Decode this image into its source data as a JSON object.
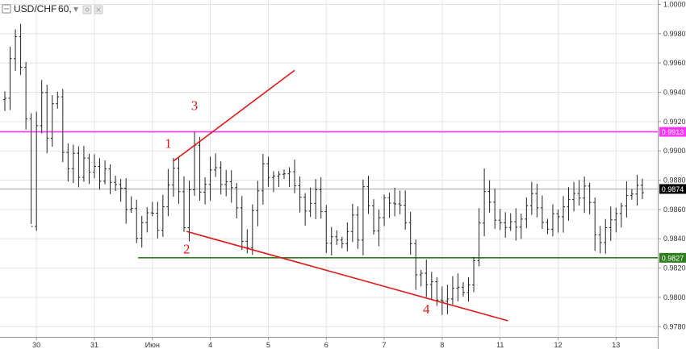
{
  "header": {
    "symbol": "USD/CHF",
    "timeframe": "60,",
    "dropdown_glyph": "▾"
  },
  "colors": {
    "magenta": "#ff33ff",
    "green": "#2e7d1e",
    "red": "#e01818",
    "candles": "#222222",
    "current": "#000000",
    "grid": "#e4e4e4"
  },
  "chart_data": {
    "type": "ohlc",
    "ylim": [
      0.9773,
      1.0003
    ],
    "xlim": [
      0,
      123
    ],
    "x_tick_labels": [
      {
        "x": 6,
        "label": "30"
      },
      {
        "x": 17,
        "label": "31"
      },
      {
        "x": 28,
        "label": "Июн"
      },
      {
        "x": 39,
        "label": "4"
      },
      {
        "x": 50,
        "label": "5"
      },
      {
        "x": 61,
        "label": "6"
      },
      {
        "x": 72,
        "label": "7"
      },
      {
        "x": 83,
        "label": "8"
      },
      {
        "x": 94,
        "label": "11"
      },
      {
        "x": 105,
        "label": "12"
      },
      {
        "x": 116,
        "label": "13"
      }
    ],
    "y_tick_labels": [
      "1.0000",
      "0.9980",
      "0.9960",
      "0.9940",
      "0.9920",
      "0.9900",
      "0.9880",
      "0.9860",
      "0.9840",
      "0.9820",
      "0.9800",
      "0.9780"
    ],
    "y_ticks": [
      1.0,
      0.998,
      0.996,
      0.994,
      0.992,
      0.99,
      0.988,
      0.986,
      0.984,
      0.982,
      0.98,
      0.978
    ],
    "hlines": [
      {
        "name": "resistance",
        "value": 0.9913,
        "label": "0.9913",
        "color": "#ff33ff"
      },
      {
        "name": "support",
        "value": 0.9827,
        "label": "0.9827",
        "color": "#2e7d1e",
        "x_start": 25.3
      },
      {
        "name": "current",
        "value": 0.9874,
        "label": "0.9874",
        "color": "#000000"
      }
    ],
    "trendlines": [
      {
        "name": "upper",
        "x1": 32,
        "y1": 0.9893,
        "x2": 55,
        "y2": 0.9955
      },
      {
        "name": "lower",
        "x1": 34.5,
        "y1": 0.9845,
        "x2": 95.5,
        "y2": 0.9784
      }
    ],
    "annotations": [
      {
        "text": "1",
        "x": 31,
        "y": 0.9902
      },
      {
        "text": "2",
        "x": 34.5,
        "y": 0.983
      },
      {
        "text": "3",
        "x": 36,
        "y": 0.9928
      },
      {
        "text": "4",
        "x": 80,
        "y": 0.9789
      }
    ],
    "path": [
      [
        0,
        0.9935
      ],
      [
        1,
        0.996
      ],
      [
        2,
        0.998
      ],
      [
        3,
        0.9955
      ],
      [
        4,
        0.992
      ],
      [
        5,
        0.985
      ],
      [
        6,
        0.9915
      ],
      [
        7,
        0.994
      ],
      [
        8,
        0.991
      ],
      [
        9,
        0.993
      ],
      [
        10,
        0.9935
      ],
      [
        11,
        0.99
      ],
      [
        12,
        0.9885
      ],
      [
        13,
        0.99
      ],
      [
        14,
        0.988
      ],
      [
        15,
        0.9893
      ],
      [
        16,
        0.9885
      ],
      [
        17,
        0.989
      ],
      [
        18,
        0.988
      ],
      [
        19,
        0.9885
      ],
      [
        20,
        0.988
      ],
      [
        21,
        0.988
      ],
      [
        22,
        0.9875
      ],
      [
        23,
        0.986
      ],
      [
        24,
        0.986
      ],
      [
        25,
        0.984
      ],
      [
        26,
        0.985
      ],
      [
        27,
        0.9855
      ],
      [
        28,
        0.9855
      ],
      [
        29,
        0.9845
      ],
      [
        30,
        0.986
      ],
      [
        31,
        0.9875
      ],
      [
        32,
        0.989
      ],
      [
        33,
        0.987
      ],
      [
        34,
        0.985
      ],
      [
        35,
        0.9875
      ],
      [
        36,
        0.9905
      ],
      [
        37,
        0.987
      ],
      [
        38,
        0.988
      ],
      [
        39,
        0.9885
      ],
      [
        40,
        0.9888
      ],
      [
        41,
        0.988
      ],
      [
        42,
        0.9878
      ],
      [
        43,
        0.9875
      ],
      [
        44,
        0.986
      ],
      [
        45,
        0.984
      ],
      [
        46,
        0.9835
      ],
      [
        47,
        0.986
      ],
      [
        48,
        0.9875
      ],
      [
        49,
        0.989
      ],
      [
        50,
        0.988
      ],
      [
        51,
        0.9883
      ],
      [
        52,
        0.9885
      ],
      [
        53,
        0.9885
      ],
      [
        54,
        0.9888
      ],
      [
        55,
        0.9875
      ],
      [
        56,
        0.987
      ],
      [
        57,
        0.986
      ],
      [
        58,
        0.9865
      ],
      [
        59,
        0.9875
      ],
      [
        60,
        0.986
      ],
      [
        61,
        0.9835
      ],
      [
        62,
        0.984
      ],
      [
        63,
        0.9838
      ],
      [
        64,
        0.9835
      ],
      [
        65,
        0.9845
      ],
      [
        66,
        0.9855
      ],
      [
        67,
        0.984
      ],
      [
        68,
        0.9875
      ],
      [
        69,
        0.986
      ],
      [
        70,
        0.9843
      ],
      [
        71,
        0.9855
      ],
      [
        72,
        0.9865
      ],
      [
        73,
        0.9865
      ],
      [
        74,
        0.9865
      ],
      [
        75,
        0.986
      ],
      [
        76,
        0.985
      ],
      [
        77,
        0.9835
      ],
      [
        78,
        0.9815
      ],
      [
        79,
        0.9815
      ],
      [
        80,
        0.981
      ],
      [
        81,
        0.9808
      ],
      [
        82,
        0.98
      ],
      [
        83,
        0.9795
      ],
      [
        84,
        0.98
      ],
      [
        85,
        0.9805
      ],
      [
        86,
        0.9805
      ],
      [
        87,
        0.9805
      ],
      [
        88,
        0.981
      ],
      [
        89,
        0.9825
      ],
      [
        90,
        0.985
      ],
      [
        91,
        0.9875
      ],
      [
        92,
        0.9865
      ],
      [
        93,
        0.9855
      ],
      [
        94,
        0.985
      ],
      [
        95,
        0.985
      ],
      [
        96,
        0.985
      ],
      [
        97,
        0.9845
      ],
      [
        98,
        0.9855
      ],
      [
        99,
        0.986
      ],
      [
        100,
        0.9868
      ],
      [
        101,
        0.986
      ],
      [
        102,
        0.985
      ],
      [
        103,
        0.9848
      ],
      [
        104,
        0.9855
      ],
      [
        105,
        0.9858
      ],
      [
        106,
        0.986
      ],
      [
        107,
        0.9865
      ],
      [
        108,
        0.9868
      ],
      [
        109,
        0.987
      ],
      [
        110,
        0.9875
      ],
      [
        111,
        0.9865
      ],
      [
        112,
        0.9845
      ],
      [
        113,
        0.9838
      ],
      [
        114,
        0.9845
      ],
      [
        115,
        0.985
      ],
      [
        116,
        0.9858
      ],
      [
        117,
        0.9865
      ],
      [
        118,
        0.987
      ],
      [
        119,
        0.9872
      ],
      [
        120,
        0.9876
      ],
      [
        121,
        0.9874
      ]
    ],
    "extremes": [
      {
        "i": 2,
        "high": 0.9983
      },
      {
        "i": 5,
        "low": 0.985
      },
      {
        "i": 25,
        "low": 0.9837
      },
      {
        "i": 36,
        "high": 0.9913
      },
      {
        "i": 46,
        "low": 0.983
      },
      {
        "i": 83,
        "low": 0.9788
      },
      {
        "i": 91,
        "high": 0.9888
      },
      {
        "i": 113,
        "low": 0.983
      }
    ]
  }
}
